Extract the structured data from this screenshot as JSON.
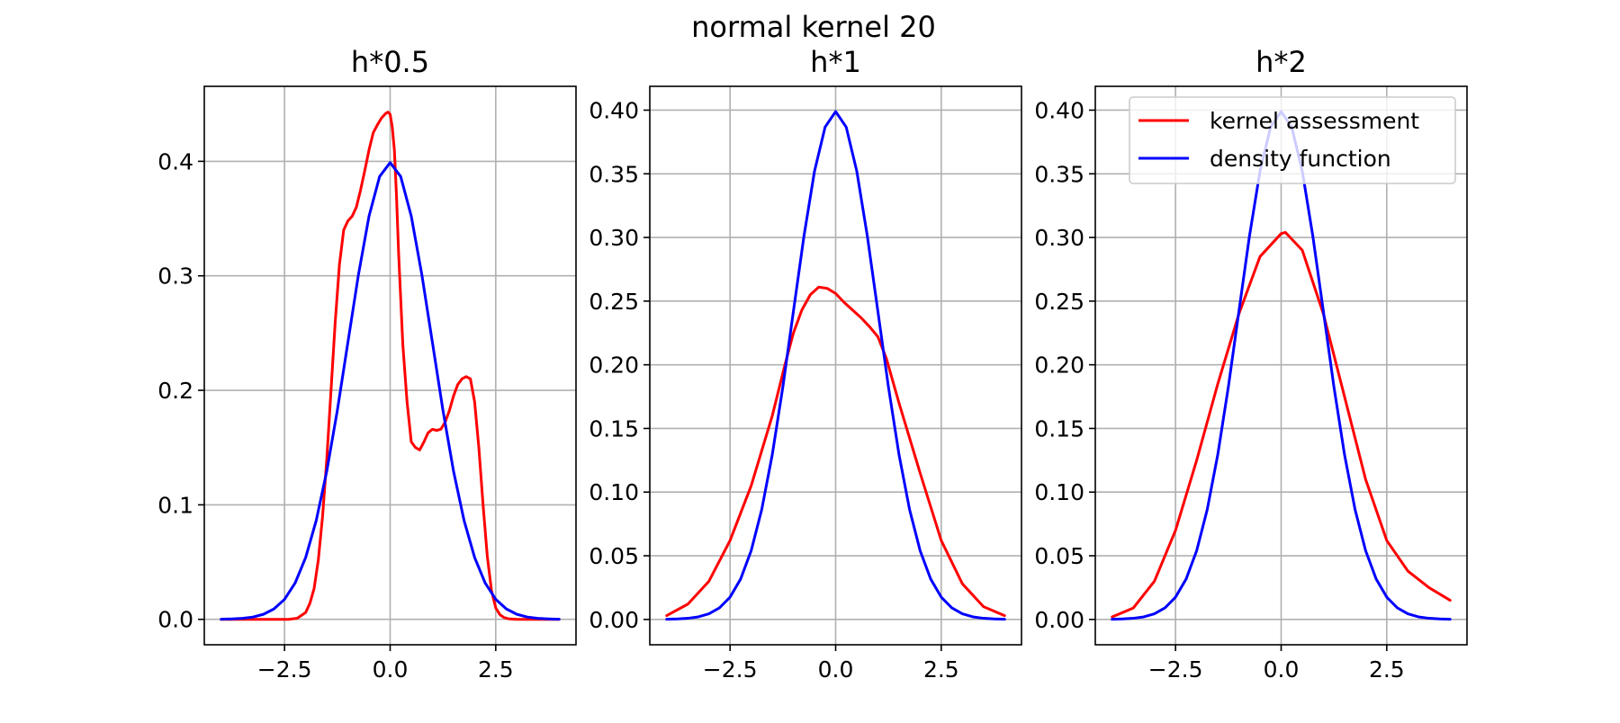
{
  "figure": {
    "title": "normal kernel 20"
  },
  "colors": {
    "kernel": "#ff0000",
    "density": "#0000ff",
    "grid": "#b0b0b0"
  },
  "chart_data": [
    {
      "type": "line",
      "title": "h*0.5",
      "xlim": [
        -4.4,
        4.4
      ],
      "ylim": [
        -0.0222,
        0.4655
      ],
      "xticks": [
        -2.5,
        0.0,
        2.5
      ],
      "xtick_labels": [
        "−2.5",
        "0.0",
        "2.5"
      ],
      "yticks": [
        0.0,
        0.1,
        0.2,
        0.3,
        0.4
      ],
      "ytick_labels": [
        "0.0",
        "0.1",
        "0.2",
        "0.3",
        "0.4"
      ],
      "grid": true,
      "series": [
        {
          "name": "kernel assessment",
          "color": "#ff0000",
          "x": [
            -4.0,
            -3.0,
            -2.4,
            -2.2,
            -2.0,
            -1.9,
            -1.8,
            -1.7,
            -1.6,
            -1.5,
            -1.4,
            -1.3,
            -1.2,
            -1.1,
            -1.0,
            -0.9,
            -0.8,
            -0.7,
            -0.6,
            -0.5,
            -0.4,
            -0.3,
            -0.2,
            -0.1,
            -0.05,
            0.0,
            0.05,
            0.1,
            0.15,
            0.2,
            0.3,
            0.4,
            0.5,
            0.6,
            0.7,
            0.8,
            0.9,
            1.0,
            1.1,
            1.2,
            1.3,
            1.4,
            1.5,
            1.6,
            1.7,
            1.8,
            1.9,
            2.0,
            2.1,
            2.2,
            2.3,
            2.4,
            2.5,
            2.6,
            2.7,
            2.8,
            3.0,
            3.5,
            4.0
          ],
          "y": [
            0.0,
            0.0,
            0.0,
            0.001,
            0.006,
            0.014,
            0.027,
            0.052,
            0.09,
            0.14,
            0.2,
            0.26,
            0.31,
            0.34,
            0.348,
            0.352,
            0.36,
            0.375,
            0.392,
            0.41,
            0.425,
            0.432,
            0.438,
            0.442,
            0.443,
            0.441,
            0.43,
            0.41,
            0.37,
            0.32,
            0.24,
            0.19,
            0.155,
            0.15,
            0.148,
            0.155,
            0.163,
            0.166,
            0.165,
            0.166,
            0.172,
            0.182,
            0.195,
            0.205,
            0.21,
            0.212,
            0.21,
            0.19,
            0.15,
            0.1,
            0.055,
            0.025,
            0.01,
            0.004,
            0.0015,
            0.0005,
            0.0,
            0.0,
            0.0
          ]
        },
        {
          "name": "density function",
          "color": "#0000ff",
          "x": [
            -4.0,
            -3.75,
            -3.5,
            -3.25,
            -3.0,
            -2.75,
            -2.5,
            -2.25,
            -2.0,
            -1.75,
            -1.5,
            -1.25,
            -1.0,
            -0.75,
            -0.5,
            -0.25,
            0.0,
            0.25,
            0.5,
            0.75,
            1.0,
            1.25,
            1.5,
            1.75,
            2.0,
            2.25,
            2.5,
            2.75,
            3.0,
            3.25,
            3.5,
            3.75,
            4.0
          ],
          "y": [
            0.0001,
            0.0004,
            0.0009,
            0.002,
            0.0044,
            0.0091,
            0.0175,
            0.0317,
            0.054,
            0.0863,
            0.1295,
            0.1826,
            0.242,
            0.3011,
            0.3521,
            0.3867,
            0.3989,
            0.3867,
            0.3521,
            0.3011,
            0.242,
            0.1826,
            0.1295,
            0.0863,
            0.054,
            0.0317,
            0.0175,
            0.0091,
            0.0044,
            0.002,
            0.0009,
            0.0004,
            0.0001
          ]
        }
      ]
    },
    {
      "type": "line",
      "title": "h*1",
      "xlim": [
        -4.4,
        4.4
      ],
      "ylim": [
        -0.0199,
        0.4187
      ],
      "xticks": [
        -2.5,
        0.0,
        2.5
      ],
      "xtick_labels": [
        "−2.5",
        "0.0",
        "2.5"
      ],
      "yticks": [
        0.0,
        0.05,
        0.1,
        0.15,
        0.2,
        0.25,
        0.3,
        0.35,
        0.4
      ],
      "ytick_labels": [
        "0.00",
        "0.05",
        "0.10",
        "0.15",
        "0.20",
        "0.25",
        "0.30",
        "0.35",
        "0.40"
      ],
      "grid": true,
      "series": [
        {
          "name": "kernel assessment",
          "color": "#ff0000",
          "x": [
            -4.0,
            -3.5,
            -3.0,
            -2.5,
            -2.0,
            -1.5,
            -1.2,
            -1.0,
            -0.8,
            -0.6,
            -0.4,
            -0.2,
            0.0,
            0.2,
            0.4,
            0.6,
            0.8,
            1.0,
            1.2,
            1.5,
            2.0,
            2.5,
            3.0,
            3.5,
            4.0
          ],
          "y": [
            0.003,
            0.012,
            0.03,
            0.062,
            0.105,
            0.16,
            0.2,
            0.225,
            0.243,
            0.255,
            0.261,
            0.26,
            0.256,
            0.249,
            0.243,
            0.237,
            0.23,
            0.222,
            0.205,
            0.17,
            0.115,
            0.062,
            0.028,
            0.01,
            0.003
          ]
        },
        {
          "name": "density function",
          "color": "#0000ff",
          "x": [
            -4.0,
            -3.75,
            -3.5,
            -3.25,
            -3.0,
            -2.75,
            -2.5,
            -2.25,
            -2.0,
            -1.75,
            -1.5,
            -1.25,
            -1.0,
            -0.75,
            -0.5,
            -0.25,
            0.0,
            0.25,
            0.5,
            0.75,
            1.0,
            1.25,
            1.5,
            1.75,
            2.0,
            2.25,
            2.5,
            2.75,
            3.0,
            3.25,
            3.5,
            3.75,
            4.0
          ],
          "y": [
            0.0001,
            0.0004,
            0.0009,
            0.002,
            0.0044,
            0.0091,
            0.0175,
            0.0317,
            0.054,
            0.0863,
            0.1295,
            0.1826,
            0.242,
            0.3011,
            0.3521,
            0.3867,
            0.3989,
            0.3867,
            0.3521,
            0.3011,
            0.242,
            0.1826,
            0.1295,
            0.0863,
            0.054,
            0.0317,
            0.0175,
            0.0091,
            0.0044,
            0.002,
            0.0009,
            0.0004,
            0.0001
          ]
        }
      ]
    },
    {
      "type": "line",
      "title": "h*2",
      "xlim": [
        -4.4,
        4.4
      ],
      "ylim": [
        -0.0199,
        0.4187
      ],
      "xticks": [
        -2.5,
        0.0,
        2.5
      ],
      "xtick_labels": [
        "−2.5",
        "0.0",
        "2.5"
      ],
      "yticks": [
        0.0,
        0.05,
        0.1,
        0.15,
        0.2,
        0.25,
        0.3,
        0.35,
        0.4
      ],
      "ytick_labels": [
        "0.00",
        "0.05",
        "0.10",
        "0.15",
        "0.20",
        "0.25",
        "0.30",
        "0.35",
        "0.40"
      ],
      "grid": true,
      "legend": {
        "placement": "upper right",
        "entries": [
          "kernel assessment",
          "density function"
        ]
      },
      "series": [
        {
          "name": "kernel assessment",
          "color": "#ff0000",
          "x": [
            -4.0,
            -3.5,
            -3.0,
            -2.5,
            -2.0,
            -1.5,
            -1.0,
            -0.5,
            0.0,
            0.1,
            0.5,
            1.0,
            1.5,
            2.0,
            2.5,
            3.0,
            3.5,
            4.0
          ],
          "y": [
            0.002,
            0.009,
            0.03,
            0.07,
            0.125,
            0.185,
            0.24,
            0.285,
            0.303,
            0.304,
            0.29,
            0.24,
            0.175,
            0.11,
            0.062,
            0.038,
            0.025,
            0.015
          ]
        },
        {
          "name": "density function",
          "color": "#0000ff",
          "x": [
            -4.0,
            -3.75,
            -3.5,
            -3.25,
            -3.0,
            -2.75,
            -2.5,
            -2.25,
            -2.0,
            -1.75,
            -1.5,
            -1.25,
            -1.0,
            -0.75,
            -0.5,
            -0.25,
            0.0,
            0.25,
            0.5,
            0.75,
            1.0,
            1.25,
            1.5,
            1.75,
            2.0,
            2.25,
            2.5,
            2.75,
            3.0,
            3.25,
            3.5,
            3.75,
            4.0
          ],
          "y": [
            0.0001,
            0.0004,
            0.0009,
            0.002,
            0.0044,
            0.0091,
            0.0175,
            0.0317,
            0.054,
            0.0863,
            0.1295,
            0.1826,
            0.242,
            0.3011,
            0.3521,
            0.3867,
            0.3989,
            0.3867,
            0.3521,
            0.3011,
            0.242,
            0.1826,
            0.1295,
            0.0863,
            0.054,
            0.0317,
            0.0175,
            0.0091,
            0.0044,
            0.002,
            0.0009,
            0.0004,
            0.0001
          ]
        }
      ]
    }
  ]
}
